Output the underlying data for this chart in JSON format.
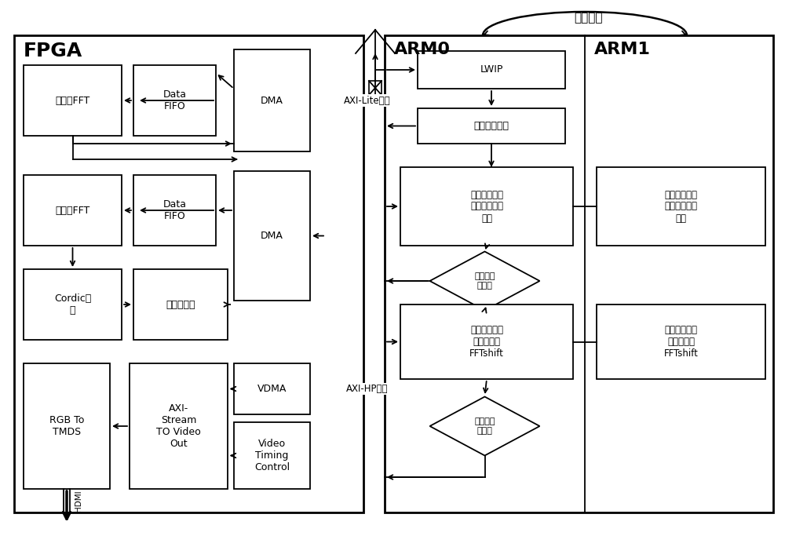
{
  "bg": "#ffffff",
  "lc": "#000000",
  "fpga_label": "FPGA",
  "arm0_label": "ARM0",
  "arm1_label": "ARM1",
  "shared_mem": "共享内存",
  "axi_lite_label": "AXI-Lite端口",
  "axi_hp_label": "AXI-HP端口",
  "hdmi_label": "HDMI",
  "juli_fft": "距离向FFT",
  "data_fifo": "Data\nFIFO",
  "dma": "DMA",
  "fangwei_fft": "方位向FFT",
  "cordic": "Cordic取\n模",
  "pseudo": "伪彩色生成",
  "rgb_tmds": "RGB To\nTMDS",
  "axi_stream": "AXI-\nStream\nTO Video\nOut",
  "vdma": "VDMA",
  "vtc": "Video\nTiming\nControl",
  "lwip": "LWIP",
  "interp": "插値矩阵映射",
  "front1": "前一半数据的\n转置及幅値归\n一化",
  "back1": "后一半数据的\n转置及幅値归\n一化",
  "front2": "前一半数据的\n转置及二维\nFFTshift",
  "back2": "后一半数据的\n转置及二维\nFFTshift",
  "diamond_text": "两部分操\n作完成"
}
